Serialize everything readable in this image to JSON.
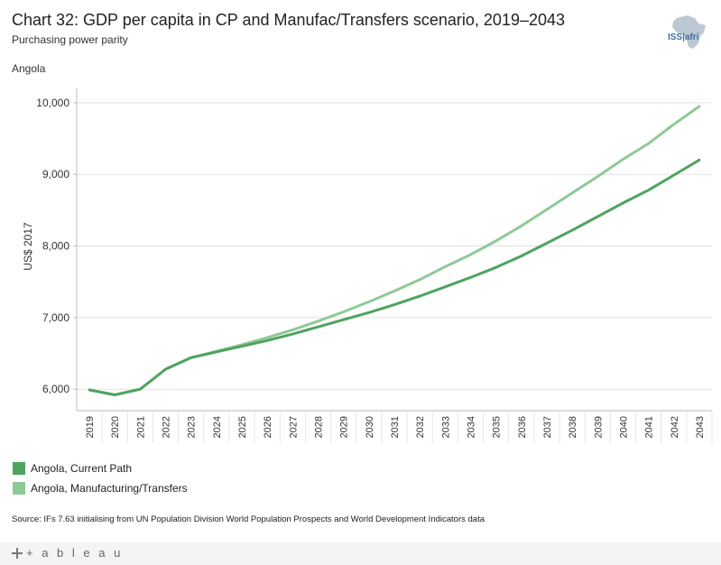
{
  "header": {
    "title": "Chart 32: GDP per capita in CP and Manufac/Transfers scenario, 2019–2043",
    "subtitle": "Purchasing power parity",
    "country": "Angola"
  },
  "logo": {
    "text": "ISS|afri",
    "icon": "africa-map-icon"
  },
  "legend": [
    {
      "label": "Angola,  Current Path",
      "color": "#4fa35f"
    },
    {
      "label": "Angola,  Manufacturing/Transfers",
      "color": "#8fc997"
    }
  ],
  "source": "Source: IFs 7.63 initialising from UN Population Division World Population Prospects and World Development Indicators data",
  "footer": {
    "brand": "+ a b l e a u",
    "icon": "tableau-plus-icon"
  },
  "colors": {
    "current_path": "#4fa35f",
    "manufacturing": "#8fc997",
    "grid": "#e2e2e2",
    "axis": "#bbbbbb"
  },
  "chart_data": {
    "type": "line",
    "title": "Chart 32: GDP per capita in CP and Manufac/Transfers scenario, 2019–2043",
    "subtitle": "Purchasing power parity",
    "xlabel": "",
    "ylabel": "US$ 2017",
    "ylim": [
      5700,
      10200
    ],
    "yticks": [
      6000,
      7000,
      8000,
      9000,
      10000
    ],
    "ytick_labels": [
      "6,000",
      "7,000",
      "8,000",
      "9,000",
      "10,000"
    ],
    "grid": true,
    "legend_position": "bottom-left",
    "x": [
      "2019",
      "2020",
      "2021",
      "2022",
      "2023",
      "2024",
      "2025",
      "2026",
      "2027",
      "2028",
      "2029",
      "2030",
      "2031",
      "2032",
      "2033",
      "2034",
      "2035",
      "2036",
      "2037",
      "2038",
      "2039",
      "2040",
      "2041",
      "2042",
      "2043"
    ],
    "series": [
      {
        "name": "Angola,  Current Path",
        "color": "#4fa35f",
        "values": [
          5990,
          5920,
          6000,
          6280,
          6440,
          6520,
          6600,
          6680,
          6770,
          6870,
          6970,
          7070,
          7180,
          7300,
          7430,
          7560,
          7700,
          7860,
          8040,
          8220,
          8410,
          8600,
          8780,
          8990,
          9200
        ]
      },
      {
        "name": "Angola,  Manufacturing/Transfers",
        "color": "#8fc997",
        "values": [
          5990,
          5920,
          6000,
          6280,
          6440,
          6530,
          6620,
          6720,
          6830,
          6950,
          7080,
          7220,
          7370,
          7530,
          7710,
          7880,
          8070,
          8280,
          8510,
          8740,
          8970,
          9210,
          9430,
          9700,
          9950
        ]
      }
    ]
  }
}
